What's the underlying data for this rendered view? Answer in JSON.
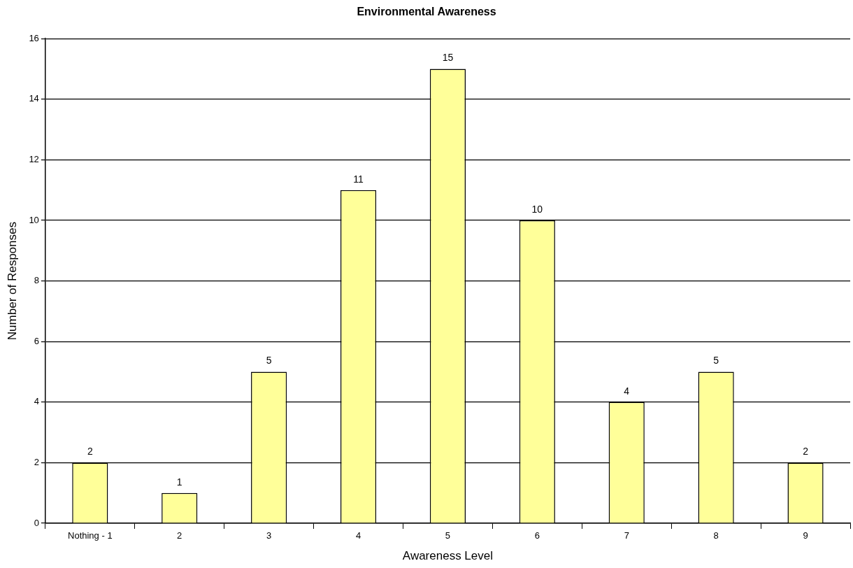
{
  "chart_data": {
    "type": "bar",
    "title": "Environmental Awareness",
    "xlabel": "Awareness Level",
    "ylabel": "Number of Responses",
    "categories": [
      "Nothing - 1",
      "2",
      "3",
      "4",
      "5",
      "6",
      "7",
      "8",
      "9"
    ],
    "values": [
      2,
      1,
      5,
      11,
      15,
      10,
      4,
      5,
      2
    ],
    "color": "#ffff99",
    "ylim": [
      0,
      16
    ],
    "yticks": [
      0,
      2,
      4,
      6,
      8,
      10,
      12,
      14,
      16
    ],
    "grid": "y",
    "legend": false,
    "data_labels": true
  }
}
